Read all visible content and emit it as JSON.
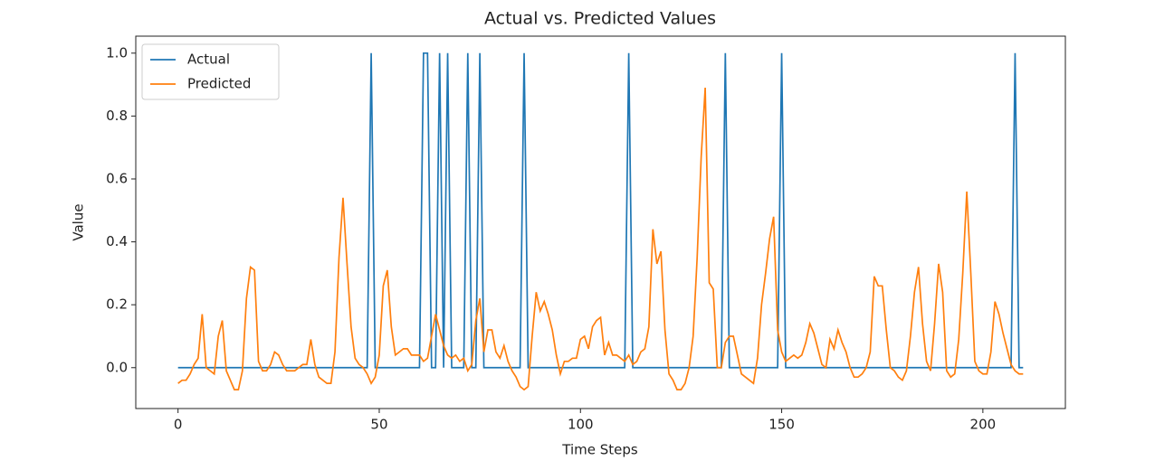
{
  "chart_data": {
    "type": "line",
    "title": "Actual vs. Predicted Values",
    "x_label": "Time Steps",
    "y_label": "Value",
    "legend": "upper left",
    "grid": false,
    "xlim": [
      -10.5,
      220.5
    ],
    "xticks": [
      0,
      50,
      100,
      150,
      200
    ],
    "ylim": [
      -0.13,
      1.054
    ],
    "yticks": [
      {
        "value": 0,
        "label": "0.0"
      },
      0.2,
      0.4,
      0.6,
      0.8,
      {
        "value": 1,
        "label": "1.0"
      }
    ],
    "x": [
      0,
      1,
      2,
      3,
      4,
      5,
      6,
      7,
      8,
      9,
      10,
      11,
      12,
      13,
      14,
      15,
      16,
      17,
      18,
      19,
      20,
      21,
      22,
      23,
      24,
      25,
      26,
      27,
      28,
      29,
      30,
      31,
      32,
      33,
      34,
      35,
      36,
      37,
      38,
      39,
      40,
      41,
      42,
      43,
      44,
      45,
      46,
      47,
      48,
      49,
      50,
      51,
      52,
      53,
      54,
      55,
      56,
      57,
      58,
      59,
      60,
      61,
      62,
      63,
      64,
      65,
      66,
      67,
      68,
      69,
      70,
      71,
      72,
      73,
      74,
      75,
      76,
      77,
      78,
      79,
      80,
      81,
      82,
      83,
      84,
      85,
      86,
      87,
      88,
      89,
      90,
      91,
      92,
      93,
      94,
      95,
      96,
      97,
      98,
      99,
      100,
      101,
      102,
      103,
      104,
      105,
      106,
      107,
      108,
      109,
      110,
      111,
      112,
      113,
      114,
      115,
      116,
      117,
      118,
      119,
      120,
      121,
      122,
      123,
      124,
      125,
      126,
      127,
      128,
      129,
      130,
      131,
      132,
      133,
      134,
      135,
      136,
      137,
      138,
      139,
      140,
      141,
      142,
      143,
      144,
      145,
      146,
      147,
      148,
      149,
      150,
      151,
      152,
      153,
      154,
      155,
      156,
      157,
      158,
      159,
      160,
      161,
      162,
      163,
      164,
      165,
      166,
      167,
      168,
      169,
      170,
      171,
      172,
      173,
      174,
      175,
      176,
      177,
      178,
      179,
      180,
      181,
      182,
      183,
      184,
      185,
      186,
      187,
      188,
      189,
      190,
      191,
      192,
      193,
      194,
      195,
      196,
      197,
      198,
      199,
      200,
      201,
      202,
      203,
      204,
      205,
      206,
      207,
      208,
      209,
      210
    ],
    "series": [
      {
        "name": "Actual",
        "color": "#1f77b4",
        "values": [
          0,
          0,
          0,
          0,
          0,
          0,
          0,
          0,
          0,
          0,
          0,
          0,
          0,
          0,
          0,
          0,
          0,
          0,
          0,
          0,
          0,
          0,
          0,
          0,
          0,
          0,
          0,
          0,
          0,
          0,
          0,
          0,
          0,
          0,
          0,
          0,
          0,
          0,
          0,
          0,
          0,
          0,
          0,
          0,
          0,
          0,
          0,
          0,
          1,
          0,
          0,
          0,
          0,
          0,
          0,
          0,
          0,
          0,
          0,
          0,
          0,
          1,
          1,
          0,
          0,
          1,
          0,
          1,
          0,
          0,
          0,
          0,
          1,
          0,
          0,
          1,
          0,
          0,
          0,
          0,
          0,
          0,
          0,
          0,
          0,
          0,
          1,
          0,
          0,
          0,
          0,
          0,
          0,
          0,
          0,
          0,
          0,
          0,
          0,
          0,
          0,
          0,
          0,
          0,
          0,
          0,
          0,
          0,
          0,
          0,
          0,
          0,
          1,
          0,
          0,
          0,
          0,
          0,
          0,
          0,
          0,
          0,
          0,
          0,
          0,
          0,
          0,
          0,
          0,
          0,
          0,
          0,
          0,
          0,
          0,
          0,
          1,
          0,
          0,
          0,
          0,
          0,
          0,
          0,
          0,
          0,
          0,
          0,
          0,
          0,
          1,
          0,
          0,
          0,
          0,
          0,
          0,
          0,
          0,
          0,
          0,
          0,
          0,
          0,
          0,
          0,
          0,
          0,
          0,
          0,
          0,
          0,
          0,
          0,
          0,
          0,
          0,
          0,
          0,
          0,
          0,
          0,
          0,
          0,
          0,
          0,
          0,
          0,
          0,
          0,
          0,
          0,
          0,
          0,
          0,
          0,
          0,
          0,
          0,
          0,
          0,
          0,
          0,
          0,
          0,
          0,
          0,
          0,
          1,
          0,
          0
        ]
      },
      {
        "name": "Predicted",
        "color": "#ff7f0e",
        "values": [
          -0.05,
          -0.04,
          -0.04,
          -0.02,
          0.01,
          0.03,
          0.17,
          0.0,
          -0.01,
          -0.02,
          0.1,
          0.15,
          -0.01,
          -0.04,
          -0.07,
          -0.07,
          -0.01,
          0.22,
          0.32,
          0.31,
          0.02,
          -0.01,
          -0.01,
          0.01,
          0.05,
          0.04,
          0.01,
          -0.01,
          -0.01,
          -0.01,
          0.0,
          0.01,
          0.01,
          0.09,
          0.01,
          -0.03,
          -0.04,
          -0.05,
          -0.05,
          0.05,
          0.35,
          0.54,
          0.33,
          0.13,
          0.03,
          0.01,
          0.0,
          -0.02,
          -0.05,
          -0.03,
          0.04,
          0.26,
          0.31,
          0.13,
          0.04,
          0.05,
          0.06,
          0.06,
          0.04,
          0.04,
          0.04,
          0.02,
          0.03,
          0.1,
          0.17,
          0.12,
          0.07,
          0.04,
          0.03,
          0.04,
          0.02,
          0.03,
          -0.01,
          0.01,
          0.15,
          0.22,
          0.05,
          0.12,
          0.12,
          0.05,
          0.03,
          0.07,
          0.02,
          -0.01,
          -0.03,
          -0.06,
          -0.07,
          -0.06,
          0.1,
          0.24,
          0.18,
          0.21,
          0.17,
          0.12,
          0.04,
          -0.02,
          0.02,
          0.02,
          0.03,
          0.03,
          0.09,
          0.1,
          0.06,
          0.13,
          0.15,
          0.16,
          0.04,
          0.08,
          0.04,
          0.04,
          0.03,
          0.02,
          0.04,
          0.01,
          0.02,
          0.05,
          0.06,
          0.13,
          0.44,
          0.33,
          0.37,
          0.12,
          -0.02,
          -0.04,
          -0.07,
          -0.07,
          -0.05,
          0.0,
          0.1,
          0.35,
          0.67,
          0.89,
          0.27,
          0.25,
          0.0,
          0.0,
          0.08,
          0.1,
          0.1,
          0.04,
          -0.02,
          -0.03,
          -0.04,
          -0.05,
          0.03,
          0.2,
          0.3,
          0.41,
          0.48,
          0.12,
          0.05,
          0.02,
          0.03,
          0.04,
          0.03,
          0.04,
          0.08,
          0.14,
          0.11,
          0.06,
          0.01,
          0.0,
          0.09,
          0.06,
          0.12,
          0.08,
          0.05,
          0.0,
          -0.03,
          -0.03,
          -0.02,
          0.0,
          0.05,
          0.29,
          0.26,
          0.26,
          0.12,
          0.0,
          -0.01,
          -0.03,
          -0.04,
          -0.01,
          0.1,
          0.24,
          0.32,
          0.14,
          0.02,
          -0.01,
          0.14,
          0.33,
          0.24,
          -0.01,
          -0.03,
          -0.02,
          0.09,
          0.3,
          0.56,
          0.3,
          0.02,
          -0.01,
          -0.02,
          -0.02,
          0.05,
          0.21,
          0.17,
          0.11,
          0.06,
          0.01,
          -0.01,
          -0.02,
          -0.02
        ]
      }
    ]
  }
}
